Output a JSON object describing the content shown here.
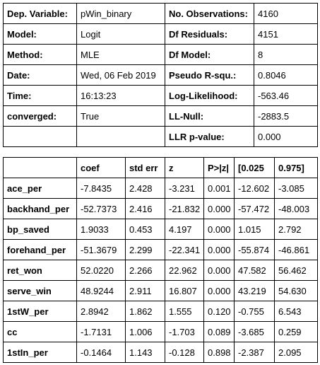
{
  "summary": {
    "rows": [
      [
        "Dep. Variable:",
        "pWin_binary",
        "No. Observations:",
        "4160"
      ],
      [
        "Model:",
        "Logit",
        "Df Residuals:",
        "4151"
      ],
      [
        "Method:",
        "MLE",
        "Df Model:",
        "8"
      ],
      [
        "Date:",
        "Wed, 06 Feb 2019",
        "Pseudo R-squ.:",
        "0.8046"
      ],
      [
        "Time:",
        "16:13:23",
        "Log-Likelihood:",
        "-563.46"
      ],
      [
        "converged:",
        "True",
        "LL-Null:",
        "-2883.5"
      ],
      [
        "",
        "",
        "LLR p-value:",
        "0.000"
      ]
    ]
  },
  "coef_table": {
    "headers": [
      "",
      "coef",
      "std err",
      "z",
      "P>|z|",
      "[0.025",
      "0.975]"
    ],
    "rows": [
      [
        "ace_per",
        "-7.8435",
        "2.428",
        "-3.231",
        "0.001",
        "-12.602",
        "-3.085"
      ],
      [
        "backhand_per",
        "-52.7373",
        "2.416",
        "-21.832",
        "0.000",
        "-57.472",
        "-48.003"
      ],
      [
        "bp_saved",
        "1.9033",
        "0.453",
        "4.197",
        "0.000",
        "1.015",
        "2.792"
      ],
      [
        "forehand_per",
        "-51.3679",
        "2.299",
        "-22.341",
        "0.000",
        "-55.874",
        "-46.861"
      ],
      [
        "ret_won",
        "52.0220",
        "2.266",
        "22.962",
        "0.000",
        "47.582",
        "56.462"
      ],
      [
        "serve_win",
        "48.9244",
        "2.911",
        "16.807",
        "0.000",
        "43.219",
        "54.630"
      ],
      [
        "1stW_per",
        "2.8942",
        "1.862",
        "1.555",
        "0.120",
        "-0.755",
        "6.543"
      ],
      [
        "cc",
        "-1.7131",
        "1.006",
        "-1.703",
        "0.089",
        "-3.685",
        "0.259"
      ],
      [
        "1stIn_per",
        "-0.1464",
        "1.143",
        "-0.128",
        "0.898",
        "-2.387",
        "2.095"
      ]
    ]
  }
}
